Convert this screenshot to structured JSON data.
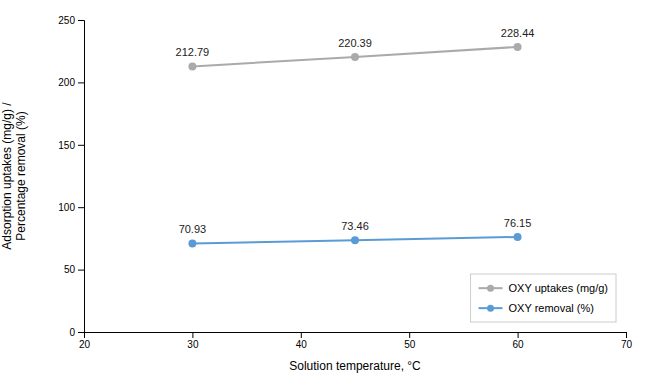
{
  "chart_data": {
    "type": "line",
    "x": [
      30,
      45,
      60
    ],
    "series": [
      {
        "name": "OXY uptakes (mg/g)",
        "color": "#aaaaaa",
        "values": [
          212.79,
          220.39,
          228.44
        ]
      },
      {
        "name": "OXY removal (%)",
        "color": "#5b9bd5",
        "values": [
          70.93,
          73.46,
          76.15
        ]
      }
    ],
    "xlabel": "Solution temperature, °C",
    "ylabel": "Adsorption uptakes (mg/g) /\nPercentage removal (%)",
    "xlim": [
      20,
      70
    ],
    "ylim": [
      0,
      250
    ],
    "xticks": [
      20,
      30,
      40,
      50,
      60,
      70
    ],
    "yticks": [
      0,
      50,
      100,
      150,
      200,
      250
    ],
    "marker": "circle",
    "data_labels": true,
    "legend": "lower right",
    "grid": false
  }
}
